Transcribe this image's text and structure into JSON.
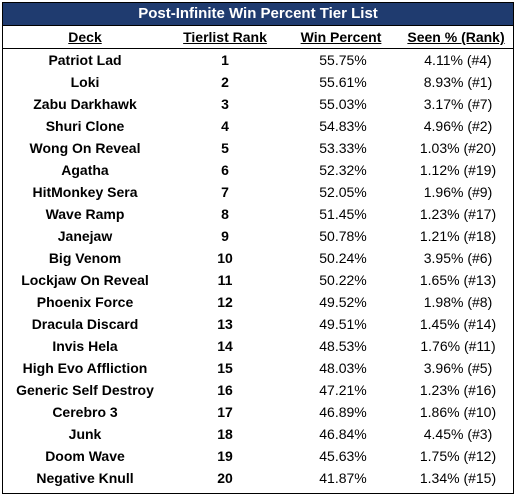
{
  "title": "Post-Infinite Win Percent Tier List",
  "headers": {
    "deck": "Deck",
    "rank": "Tierlist Rank",
    "win": "Win Percent",
    "seen": "Seen % (Rank)"
  },
  "rows": [
    {
      "deck": "Patriot Lad",
      "rank": "1",
      "win": "55.75%",
      "seen": "4.11% (#4)"
    },
    {
      "deck": "Loki",
      "rank": "2",
      "win": "55.61%",
      "seen": "8.93% (#1)"
    },
    {
      "deck": "Zabu Darkhawk",
      "rank": "3",
      "win": "55.03%",
      "seen": "3.17% (#7)"
    },
    {
      "deck": "Shuri Clone",
      "rank": "4",
      "win": "54.83%",
      "seen": "4.96% (#2)"
    },
    {
      "deck": "Wong On Reveal",
      "rank": "5",
      "win": "53.33%",
      "seen": "1.03% (#20)"
    },
    {
      "deck": "Agatha",
      "rank": "6",
      "win": "52.32%",
      "seen": "1.12% (#19)"
    },
    {
      "deck": "HitMonkey Sera",
      "rank": "7",
      "win": "52.05%",
      "seen": "1.96% (#9)"
    },
    {
      "deck": "Wave Ramp",
      "rank": "8",
      "win": "51.45%",
      "seen": "1.23% (#17)"
    },
    {
      "deck": "Janejaw",
      "rank": "9",
      "win": "50.78%",
      "seen": "1.21% (#18)"
    },
    {
      "deck": "Big Venom",
      "rank": "10",
      "win": "50.24%",
      "seen": "3.95% (#6)"
    },
    {
      "deck": "Lockjaw On Reveal",
      "rank": "11",
      "win": "50.22%",
      "seen": "1.65% (#13)"
    },
    {
      "deck": "Phoenix Force",
      "rank": "12",
      "win": "49.52%",
      "seen": "1.98% (#8)"
    },
    {
      "deck": "Dracula Discard",
      "rank": "13",
      "win": "49.51%",
      "seen": "1.45% (#14)"
    },
    {
      "deck": "Invis Hela",
      "rank": "14",
      "win": "48.53%",
      "seen": "1.76% (#11)"
    },
    {
      "deck": "High Evo Affliction",
      "rank": "15",
      "win": "48.03%",
      "seen": "3.96% (#5)"
    },
    {
      "deck": "Generic Self Destroy",
      "rank": "16",
      "win": "47.21%",
      "seen": "1.23% (#16)"
    },
    {
      "deck": "Cerebro 3",
      "rank": "17",
      "win": "46.89%",
      "seen": "1.86% (#10)"
    },
    {
      "deck": "Junk",
      "rank": "18",
      "win": "46.84%",
      "seen": "4.45% (#3)"
    },
    {
      "deck": "Doom Wave",
      "rank": "19",
      "win": "45.63%",
      "seen": "1.75% (#12)"
    },
    {
      "deck": "Negative Knull",
      "rank": "20",
      "win": "41.87%",
      "seen": "1.34% (#15)"
    }
  ],
  "colors": {
    "title_background": "#1f3b6f",
    "title_text": "#ffffff",
    "border": "#000000"
  }
}
